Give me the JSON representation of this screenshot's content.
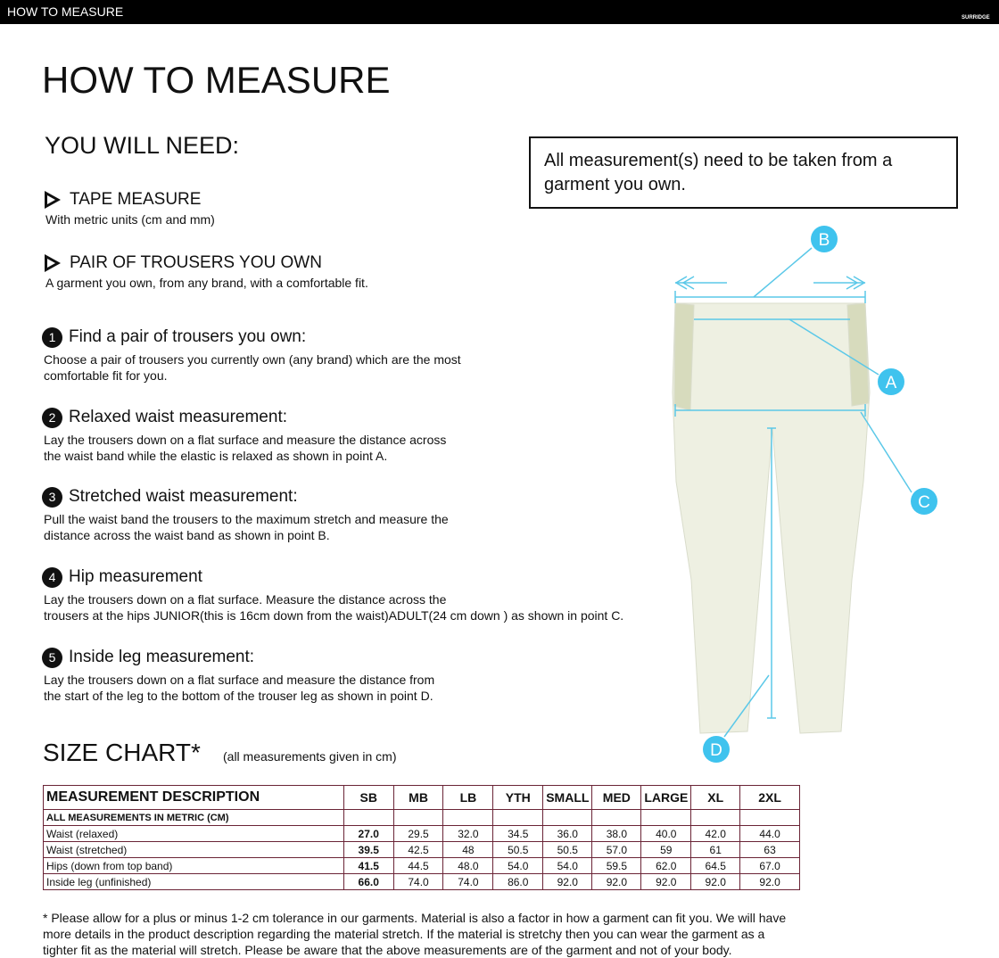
{
  "header": {
    "bar_title": "HOW TO MEASURE",
    "logo": "SURRIDGE"
  },
  "title": "HOW TO MEASURE",
  "you_will_need": {
    "heading": "YOU WILL NEED:",
    "items": [
      {
        "title": "TAPE MEASURE",
        "text": "With metric units (cm and mm)"
      },
      {
        "title": "PAIR OF TROUSERS YOU OWN",
        "text": "A garment you own, from any brand, with a comfortable fit."
      }
    ]
  },
  "note": "All measurement(s) need to be taken from a garment you own.",
  "steps": [
    {
      "number": "1",
      "title": "Find a pair of trousers you own:",
      "lines": [
        "Choose a pair of trousers you currently own (any brand) which are the most",
        "comfortable fit for you."
      ]
    },
    {
      "number": "2",
      "title": "Relaxed waist measurement:",
      "lines": [
        "Lay the trousers down on a flat surface and measure the distance across",
        "the waist band while the elastic is relaxed as shown in point A."
      ]
    },
    {
      "number": "3",
      "title": "Stretched waist measurement:",
      "lines": [
        "Pull the waist band the trousers to the maximum stretch and measure the",
        "distance across the waist band as shown in point B."
      ]
    },
    {
      "number": "4",
      "title": "Hip measurement",
      "lines": [
        "Lay the trousers down on a flat surface. Measure the distance across the",
        "trousers at the hips JUNIOR(this is 16cm down from the waist)ADULT(24 cm down ) as shown in point C."
      ]
    },
    {
      "number": "5",
      "title": "Inside leg measurement:",
      "lines": [
        "Lay the trousers down on a flat surface and measure the distance from",
        "the start of the leg to the bottom of the trouser leg as shown in point D."
      ]
    }
  ],
  "diagram": {
    "labels": [
      "A",
      "B",
      "C",
      "D"
    ]
  },
  "size_chart": {
    "title": "SIZE CHART*",
    "subtitle": "(all measurements given in cm)",
    "header": [
      "MEASUREMENT DESCRIPTION",
      "SB",
      "MB",
      "LB",
      "YTH",
      "SMALL",
      "MED",
      "LARGE",
      "XL",
      "2XL"
    ],
    "section_label": "ALL MEASUREMENTS IN METRIC (CM)",
    "rows": [
      [
        "Waist (relaxed)",
        "27.0",
        "29.5",
        "32.0",
        "34.5",
        "36.0",
        "38.0",
        "40.0",
        "42.0",
        "44.0"
      ],
      [
        "Waist (stretched)",
        "39.5",
        "42.5",
        "48",
        "50.5",
        "50.5",
        "57.0",
        "59",
        "61",
        "63"
      ],
      [
        "Hips (down from top band)",
        "41.5",
        "44.5",
        "48.0",
        "54.0",
        "54.0",
        "59.5",
        "62.0",
        "64.5",
        "67.0"
      ],
      [
        "Inside leg (unfinished)",
        "66.0",
        "74.0",
        "74.0",
        "86.0",
        "92.0",
        "92.0",
        "92.0",
        "92.0",
        "92.0"
      ]
    ]
  },
  "footnote": "* Please allow for a plus or minus 1-2 cm tolerance in our garments. Material is also a factor in how a garment can fit you. We will have more details in the product description regarding the material stretch.  If the material is stretchy then you can wear the garment as a tighter fit as the material will stretch.  Please be aware that the above measurements are of the garment and not of your body."
}
